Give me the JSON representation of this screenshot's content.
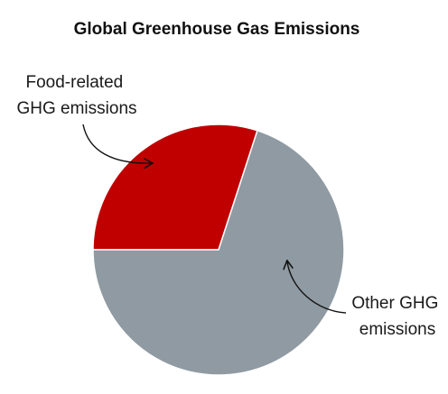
{
  "chart_data": {
    "type": "pie",
    "title": "Global Greenhouse Gas Emissions",
    "slices": [
      {
        "label_lines": [
          "Food-related",
          "GHG emissions"
        ],
        "value": 30,
        "color": "#c00000"
      },
      {
        "label_lines": [
          "Other GHG",
          "emissions"
        ],
        "value": 70,
        "color": "#8f9aa2"
      }
    ],
    "start_angle_deg": 180,
    "direction": "clockwise",
    "legend": "none"
  }
}
